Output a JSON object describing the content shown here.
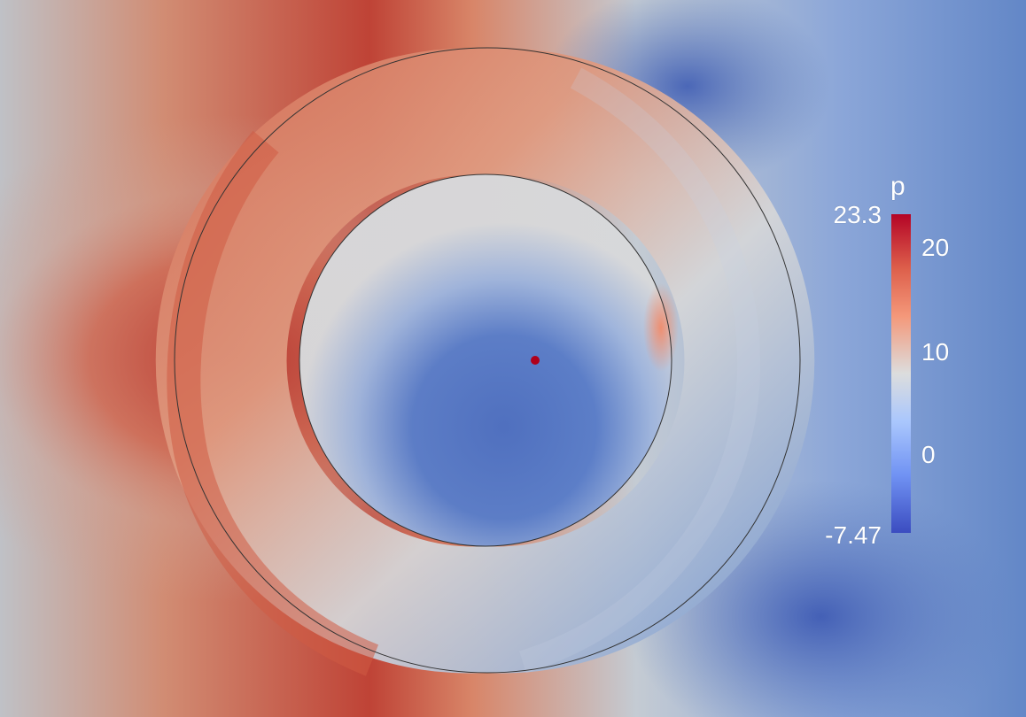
{
  "colorbar": {
    "title": "p",
    "max_label": "23.3",
    "min_label": "-7.47",
    "ticks": [
      "20",
      "10",
      "0"
    ],
    "colormap": [
      "#b40426",
      "#dd5f4b",
      "#f4987a",
      "#dcdddd",
      "#aac7fd",
      "#7092f3",
      "#3b4cc0"
    ]
  },
  "colors": {
    "background": "#5f7fc0",
    "high": "#c0453a",
    "mid": "#c9cdd2",
    "low": "#4f70bd"
  }
}
